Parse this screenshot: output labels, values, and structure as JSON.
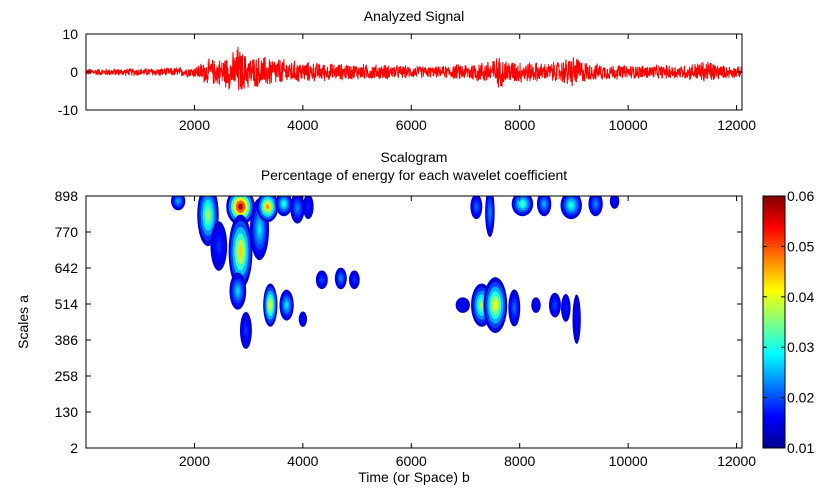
{
  "chart_data": [
    {
      "type": "line",
      "title": "Analyzed Signal",
      "xlabel": "",
      "ylabel": "",
      "xlim": [
        0,
        12100
      ],
      "ylim": [
        -10,
        10
      ],
      "xticks": [
        2000,
        4000,
        6000,
        8000,
        10000,
        12000
      ],
      "yticks": [
        -10,
        0,
        10
      ],
      "grid": false,
      "series": [
        {
          "color": "#ff0000",
          "envelope": [
            [
              0,
              1.0
            ],
            [
              1500,
              1.2
            ],
            [
              2000,
              1.5
            ],
            [
              2200,
              3.5
            ],
            [
              2500,
              4.0
            ],
            [
              2750,
              6.0
            ],
            [
              2800,
              8.0
            ],
            [
              2900,
              5.5
            ],
            [
              3100,
              4.5
            ],
            [
              3400,
              4.5
            ],
            [
              3700,
              3.5
            ],
            [
              4000,
              3.0
            ],
            [
              4500,
              2.5
            ],
            [
              5000,
              2.3
            ],
            [
              5500,
              2.2
            ],
            [
              6000,
              1.8
            ],
            [
              6500,
              1.6
            ],
            [
              7000,
              2.5
            ],
            [
              7300,
              3.0
            ],
            [
              7600,
              4.5
            ],
            [
              7800,
              3.5
            ],
            [
              8200,
              3.0
            ],
            [
              8500,
              2.5
            ],
            [
              8800,
              3.5
            ],
            [
              8950,
              5.0
            ],
            [
              9300,
              2.5
            ],
            [
              10000,
              2.0
            ],
            [
              11000,
              2.0
            ],
            [
              11500,
              3.5
            ],
            [
              11700,
              2.0
            ],
            [
              12100,
              1.5
            ]
          ]
        }
      ]
    },
    {
      "type": "heatmap",
      "title": "Scalogram",
      "subtitle": "Percentage of energy for each wavelet coefficient",
      "xlabel": "Time (or Space) b",
      "ylabel": "Scales a",
      "xlim": [
        0,
        12100
      ],
      "ylim": [
        2,
        898
      ],
      "xticks": [
        2000,
        4000,
        6000,
        8000,
        10000,
        12000
      ],
      "yticks": [
        2,
        130,
        258,
        386,
        514,
        642,
        770,
        898
      ],
      "colorbar": {
        "min": 0.01,
        "max": 0.06,
        "ticks": [
          "0.01",
          "0.02",
          "0.03",
          "0.04",
          "0.05",
          "0.06"
        ]
      },
      "grid": false,
      "blobs": [
        {
          "b": 1700,
          "a": 880,
          "wb": 60,
          "wa": 30,
          "peak": 0.022
        },
        {
          "b": 2250,
          "a": 830,
          "wb": 90,
          "wa": 100,
          "peak": 0.035
        },
        {
          "b": 2450,
          "a": 720,
          "wb": 70,
          "wa": 80,
          "peak": 0.015
        },
        {
          "b": 2850,
          "a": 860,
          "wb": 120,
          "wa": 60,
          "peak": 0.058
        },
        {
          "b": 2850,
          "a": 700,
          "wb": 100,
          "wa": 120,
          "peak": 0.042
        },
        {
          "b": 2800,
          "a": 560,
          "wb": 70,
          "wa": 60,
          "peak": 0.024
        },
        {
          "b": 2950,
          "a": 420,
          "wb": 50,
          "wa": 60,
          "peak": 0.015
        },
        {
          "b": 3200,
          "a": 780,
          "wb": 80,
          "wa": 100,
          "peak": 0.025
        },
        {
          "b": 3350,
          "a": 860,
          "wb": 90,
          "wa": 50,
          "peak": 0.045
        },
        {
          "b": 3400,
          "a": 510,
          "wb": 60,
          "wa": 70,
          "peak": 0.04
        },
        {
          "b": 3650,
          "a": 870,
          "wb": 70,
          "wa": 40,
          "peak": 0.028
        },
        {
          "b": 3700,
          "a": 510,
          "wb": 60,
          "wa": 50,
          "peak": 0.025
        },
        {
          "b": 3900,
          "a": 855,
          "wb": 60,
          "wa": 50,
          "peak": 0.02
        },
        {
          "b": 4000,
          "a": 460,
          "wb": 35,
          "wa": 25,
          "peak": 0.013
        },
        {
          "b": 4100,
          "a": 860,
          "wb": 45,
          "wa": 40,
          "peak": 0.014
        },
        {
          "b": 4350,
          "a": 600,
          "wb": 50,
          "wa": 30,
          "peak": 0.016
        },
        {
          "b": 4700,
          "a": 605,
          "wb": 50,
          "wa": 35,
          "peak": 0.02
        },
        {
          "b": 4950,
          "a": 600,
          "wb": 45,
          "wa": 30,
          "peak": 0.015
        },
        {
          "b": 6950,
          "a": 510,
          "wb": 60,
          "wa": 25,
          "peak": 0.013
        },
        {
          "b": 7200,
          "a": 860,
          "wb": 50,
          "wa": 40,
          "peak": 0.018
        },
        {
          "b": 7300,
          "a": 510,
          "wb": 90,
          "wa": 70,
          "peak": 0.035
        },
        {
          "b": 7550,
          "a": 510,
          "wb": 100,
          "wa": 90,
          "peak": 0.04
        },
        {
          "b": 7450,
          "a": 840,
          "wb": 40,
          "wa": 80,
          "peak": 0.02
        },
        {
          "b": 7900,
          "a": 500,
          "wb": 50,
          "wa": 60,
          "peak": 0.018
        },
        {
          "b": 8050,
          "a": 870,
          "wb": 90,
          "wa": 40,
          "peak": 0.03
        },
        {
          "b": 8300,
          "a": 510,
          "wb": 40,
          "wa": 25,
          "peak": 0.013
        },
        {
          "b": 8450,
          "a": 870,
          "wb": 60,
          "wa": 40,
          "peak": 0.022
        },
        {
          "b": 8650,
          "a": 510,
          "wb": 50,
          "wa": 40,
          "peak": 0.016
        },
        {
          "b": 8950,
          "a": 865,
          "wb": 90,
          "wa": 45,
          "peak": 0.028
        },
        {
          "b": 8850,
          "a": 500,
          "wb": 40,
          "wa": 45,
          "peak": 0.014
        },
        {
          "b": 9050,
          "a": 460,
          "wb": 35,
          "wa": 80,
          "peak": 0.013
        },
        {
          "b": 9400,
          "a": 870,
          "wb": 60,
          "wa": 40,
          "peak": 0.02
        },
        {
          "b": 9750,
          "a": 880,
          "wb": 40,
          "wa": 25,
          "peak": 0.013
        }
      ]
    }
  ]
}
